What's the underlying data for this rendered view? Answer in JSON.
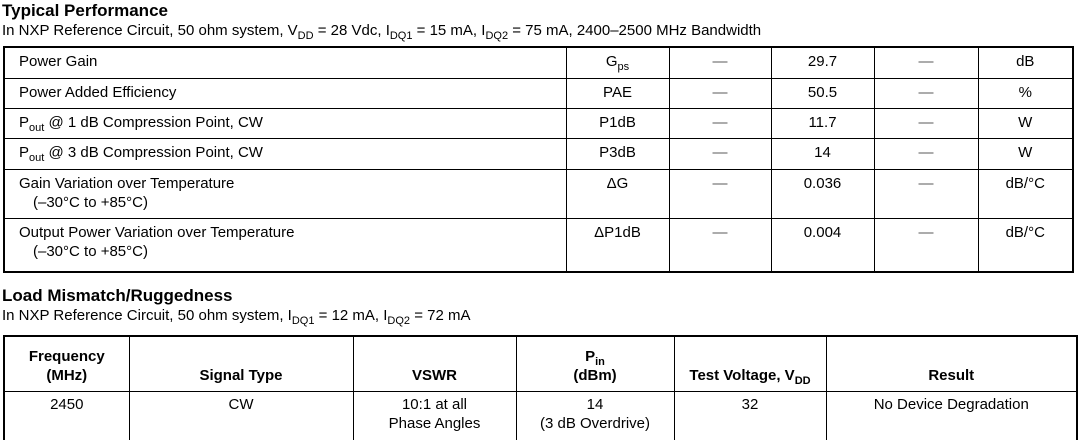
{
  "colors": {
    "text": "#000000",
    "table_border": "#000000",
    "dash_gray": "#5a5a5a",
    "background": "#ffffff"
  },
  "section1": {
    "title": "Typical Performance",
    "subtitle": [
      {
        "t": "In NXP Reference Circuit, 50 ohm system, V"
      },
      {
        "t": "DD",
        "sub": true
      },
      {
        "t": " = 28 Vdc, I"
      },
      {
        "t": "DQ1",
        "sub": true
      },
      {
        "t": " = 15 mA, I"
      },
      {
        "t": "DQ2",
        "sub": true
      },
      {
        "t": " = 75 mA, 2400–2500 MHz Bandwidth"
      }
    ],
    "table": {
      "rows": [
        {
          "characteristic": [
            {
              "t": "Power Gain"
            }
          ],
          "symbol": [
            {
              "t": "G"
            },
            {
              "t": "ps",
              "sub": true
            }
          ],
          "min": "—",
          "typ": "29.7",
          "max": "—",
          "unit": "dB"
        },
        {
          "characteristic": [
            {
              "t": "Power Added Efficiency"
            }
          ],
          "symbol": [
            {
              "t": "PAE"
            }
          ],
          "min": "—",
          "typ": "50.5",
          "max": "—",
          "unit": "%"
        },
        {
          "characteristic": [
            {
              "t": "P"
            },
            {
              "t": "out",
              "sub": true
            },
            {
              "t": " @ 1 dB Compression Point, CW"
            }
          ],
          "symbol": [
            {
              "t": "P1dB"
            }
          ],
          "min": "—",
          "typ": "11.7",
          "max": "—",
          "unit": "W"
        },
        {
          "characteristic": [
            {
              "t": "P"
            },
            {
              "t": "out",
              "sub": true
            },
            {
              "t": " @ 3 dB Compression Point, CW"
            }
          ],
          "symbol": [
            {
              "t": "P3dB"
            }
          ],
          "min": "—",
          "typ": "14",
          "max": "—",
          "unit": "W"
        },
        {
          "characteristic": [
            {
              "t": "Gain Variation over Temperature"
            }
          ],
          "characteristic_line2": [
            {
              "t": "(–30°C to +85°C)"
            }
          ],
          "symbol": [
            {
              "t": "ΔG"
            }
          ],
          "min": "—",
          "typ": "0.036",
          "max": "—",
          "unit": "dB/°C"
        },
        {
          "characteristic": [
            {
              "t": "Output Power Variation over Temperature"
            }
          ],
          "characteristic_line2": [
            {
              "t": "(–30°C to +85°C)"
            }
          ],
          "symbol": [
            {
              "t": "ΔP1dB"
            }
          ],
          "min": "—",
          "typ": "0.004",
          "max": "—",
          "unit": "dB/°C"
        }
      ]
    }
  },
  "section2": {
    "title": "Load Mismatch/Ruggedness",
    "subtitle": [
      {
        "t": "In NXP Reference Circuit, 50 ohm system, I"
      },
      {
        "t": "DQ1",
        "sub": true
      },
      {
        "t": " = 12 mA, I"
      },
      {
        "t": "DQ2",
        "sub": true
      },
      {
        "t": " = 72 mA"
      }
    ],
    "table": {
      "headers": {
        "frequency": {
          "line1": [
            {
              "t": "Frequency"
            }
          ],
          "line2": [
            {
              "t": "(MHz)"
            }
          ]
        },
        "signal_type": {
          "line1": [
            {
              "t": "Signal Type"
            }
          ]
        },
        "vswr": {
          "line1": [
            {
              "t": "VSWR"
            }
          ]
        },
        "pin": {
          "line1": [
            {
              "t": "P"
            },
            {
              "t": "in",
              "sub": true
            }
          ],
          "line2": [
            {
              "t": "(dBm)"
            }
          ]
        },
        "test_voltage": {
          "line1": [
            {
              "t": "Test Voltage, V"
            },
            {
              "t": "DD",
              "sub": true
            }
          ]
        },
        "result": {
          "line1": [
            {
              "t": "Result"
            }
          ]
        }
      },
      "row": {
        "frequency": {
          "line1": [
            {
              "t": "2450"
            }
          ]
        },
        "signal_type": {
          "line1": [
            {
              "t": "CW"
            }
          ]
        },
        "vswr": {
          "line1": [
            {
              "t": "10:1 at all"
            }
          ],
          "line2": [
            {
              "t": "Phase Angles"
            }
          ]
        },
        "pin": {
          "line1": [
            {
              "t": "14"
            }
          ],
          "line2": [
            {
              "t": "(3 dB Overdrive)"
            }
          ]
        },
        "test_voltage": {
          "line1": [
            {
              "t": "32"
            }
          ]
        },
        "result": {
          "line1": [
            {
              "t": "No Device Degradation"
            }
          ]
        }
      }
    }
  }
}
